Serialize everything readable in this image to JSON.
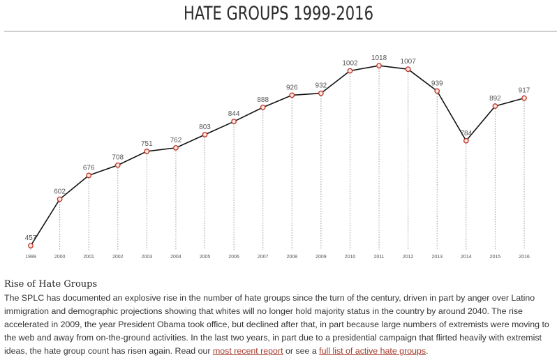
{
  "page": {
    "title": "HATE GROUPS 1999-2016"
  },
  "chart_data": {
    "type": "line",
    "title": "HATE GROUPS 1999-2016",
    "x": [
      "1999",
      "2000",
      "2001",
      "2002",
      "2003",
      "2004",
      "2005",
      "2006",
      "2007",
      "2008",
      "2009",
      "2010",
      "2011",
      "2012",
      "2013",
      "2014",
      "2015",
      "2016"
    ],
    "series": [
      {
        "values": [
          457,
          602,
          676,
          708,
          751,
          762,
          803,
          844,
          888,
          926,
          932,
          1002,
          1018,
          1007,
          939,
          784,
          892,
          917
        ]
      }
    ],
    "ylim": [
      440,
      1040
    ],
    "grid": false,
    "colors": {
      "line": "#111111",
      "marker_stroke": "#c0392b",
      "marker_fill": "#fde8e2",
      "dropline": "#9a9a9a"
    }
  },
  "article": {
    "heading": "Rise of Hate Groups",
    "body_part1": "The SPLC has documented an explosive rise in the number of hate groups since the turn of the century, driven in part by anger over Latino immigration and demographic projections showing that whites will no longer hold majority status in the country by around 2040. The rise accelerated in 2009, the year President Obama took office, but declined after that, in part because large numbers of extremists were moving to the web and away from on-the-ground activities. In the last two years, in part due to a presidential campaign that flirted heavily with extremist ideas, the hate group count has risen again. Read our ",
    "link1": "most recent report",
    "body_part2": " or see a ",
    "link2": "full list of active hate groups",
    "body_part3": "."
  }
}
